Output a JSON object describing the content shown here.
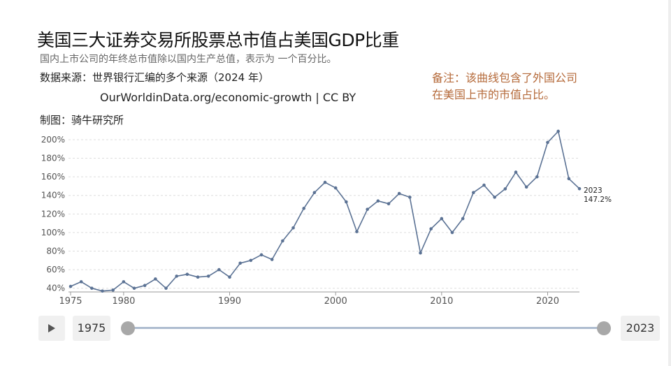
{
  "header": {
    "title": "美国三大证券交易所股票总市值占美国GDP比重",
    "subtitle": "国内上市公司的年终总市值除以国内生产总值，表示为 一个百分比。",
    "source": "数据来源：世界银行汇编的多个来源（2024 年）",
    "source_url": "OurWorldinData.org/economic-growth | CC BY",
    "maker": "制图：骑牛研究所"
  },
  "note": {
    "line1": "备注：该曲线包含了外国公司",
    "line2": "在美国上市的市值占比。"
  },
  "colors": {
    "line": "#5b7294",
    "note": "#b56a3a",
    "grid": "#dddddd",
    "slider_track": "#aebcd0"
  },
  "chart_data": {
    "type": "line",
    "title": "美国三大证券交易所股票总市值占美国GDP比重",
    "xlabel": "",
    "ylabel": "",
    "x": [
      1975,
      1976,
      1977,
      1978,
      1979,
      1980,
      1981,
      1982,
      1983,
      1984,
      1985,
      1986,
      1987,
      1988,
      1989,
      1990,
      1991,
      1992,
      1993,
      1994,
      1995,
      1996,
      1997,
      1998,
      1999,
      2000,
      2001,
      2002,
      2003,
      2004,
      2005,
      2006,
      2007,
      2008,
      2009,
      2010,
      2011,
      2012,
      2013,
      2014,
      2015,
      2016,
      2017,
      2018,
      2019,
      2020,
      2021,
      2022,
      2023
    ],
    "series": [
      {
        "values": [
          42,
          47,
          40,
          37,
          38,
          47,
          40,
          43,
          50,
          40,
          53,
          55,
          52,
          53,
          60,
          52,
          67,
          70,
          76,
          71,
          91,
          105,
          126,
          143,
          154,
          148,
          133,
          101,
          125,
          134,
          131,
          142,
          138,
          78,
          104,
          115,
          100,
          115,
          143,
          151,
          138,
          147,
          165,
          149,
          160,
          197,
          209,
          158,
          147.2
        ]
      }
    ],
    "xlim": [
      1974.8,
      2023
    ],
    "ylim": [
      36,
      215
    ],
    "x_ticks": [
      "1975",
      "1980",
      "1990",
      "2000",
      "2010",
      "2020"
    ],
    "y_ticks": [
      "40%",
      "60%",
      "80%",
      "100%",
      "120%",
      "140%",
      "160%",
      "180%",
      "200%"
    ],
    "grid": true,
    "end_label": {
      "year": "2023",
      "value": "147.2%"
    }
  },
  "timeline": {
    "start_year": "1975",
    "end_year": "2023"
  }
}
